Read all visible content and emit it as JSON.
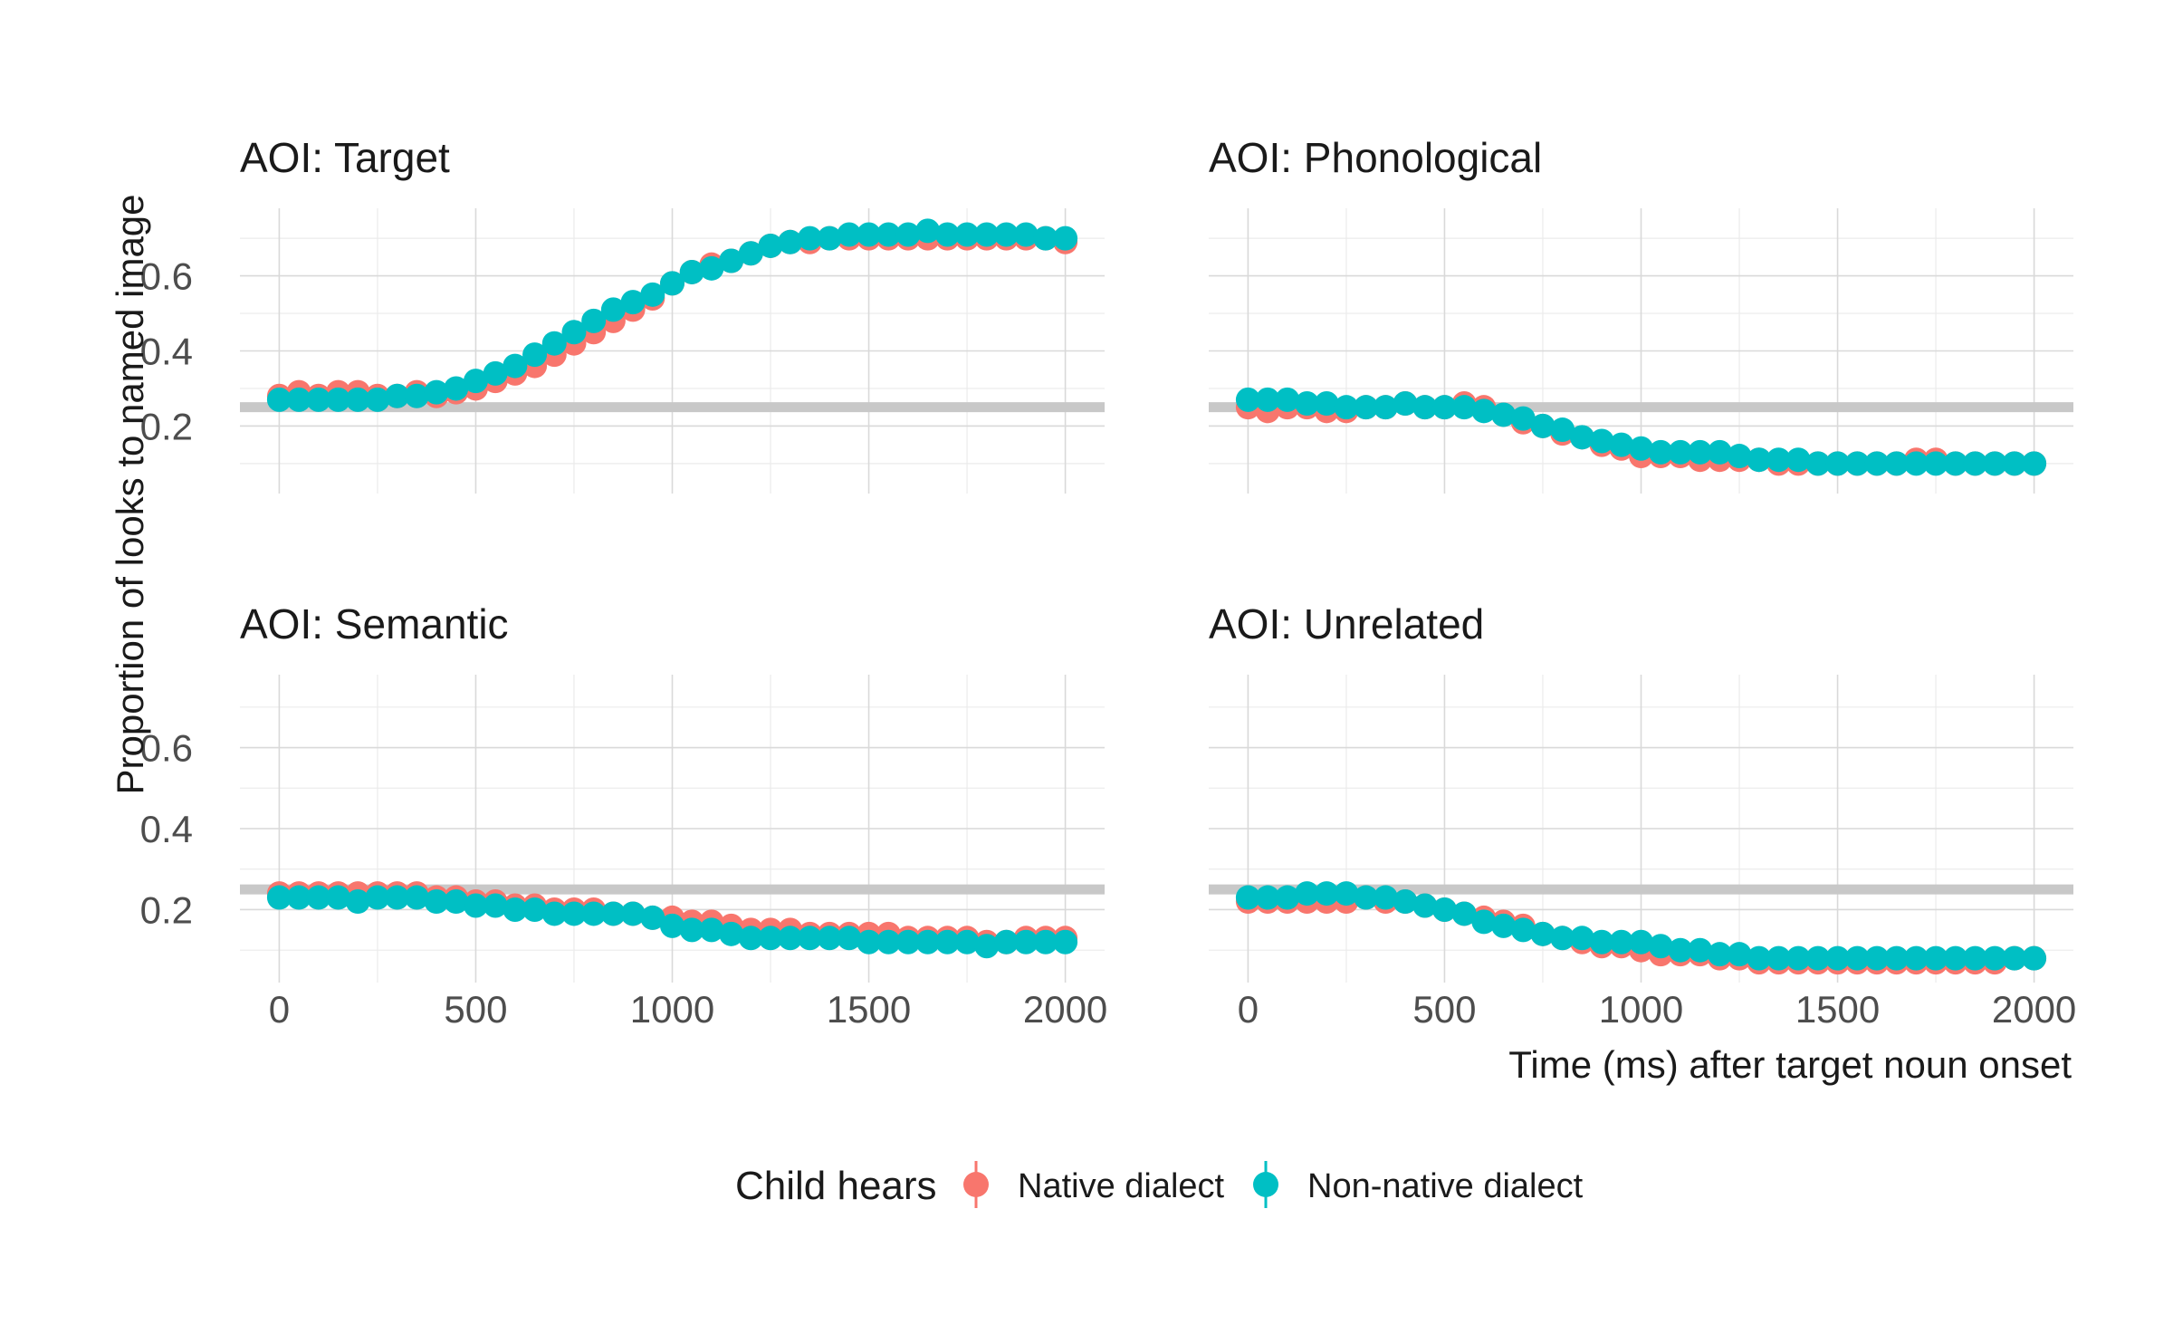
{
  "chart_data": {
    "type": "scatter",
    "title": "",
    "xlabel": "Time (ms) after target noun onset",
    "ylabel": "Proportion of looks to named image",
    "xlim": [
      -100,
      2100
    ],
    "ylim": [
      0.02,
      0.78
    ],
    "x_ticks": [
      0,
      500,
      1000,
      1500,
      2000
    ],
    "x_tick_labels": [
      "0",
      "500",
      "1000",
      "1500",
      "2000"
    ],
    "y_ticks": [
      0.2,
      0.4,
      0.6
    ],
    "y_tick_labels": [
      "0.2",
      "0.4",
      "0.6"
    ],
    "reference_line_y": 0.25,
    "grid": true,
    "legend_position": "bottom",
    "legend_title": "Child hears",
    "colors": {
      "Native dialect": "#f8766d",
      "Non-native dialect": "#00bfc4"
    },
    "x": [
      0,
      50,
      100,
      150,
      200,
      250,
      300,
      350,
      400,
      450,
      500,
      550,
      600,
      650,
      700,
      750,
      800,
      850,
      900,
      950,
      1000,
      1050,
      1100,
      1150,
      1200,
      1250,
      1300,
      1350,
      1400,
      1450,
      1500,
      1550,
      1600,
      1650,
      1700,
      1750,
      1800,
      1850,
      1900,
      1950,
      2000
    ],
    "panels": [
      {
        "title": "AOI: Target",
        "series": [
          {
            "name": "Native dialect",
            "values": [
              0.28,
              0.29,
              0.28,
              0.29,
              0.29,
              0.28,
              0.28,
              0.29,
              0.28,
              0.29,
              0.3,
              0.32,
              0.34,
              0.36,
              0.39,
              0.42,
              0.45,
              0.48,
              0.51,
              0.54,
              0.58,
              0.61,
              0.63,
              0.64,
              0.66,
              0.68,
              0.69,
              0.69,
              0.7,
              0.7,
              0.7,
              0.7,
              0.7,
              0.7,
              0.7,
              0.7,
              0.7,
              0.7,
              0.7,
              0.7,
              0.69
            ]
          },
          {
            "name": "Non-native dialect",
            "values": [
              0.27,
              0.27,
              0.27,
              0.27,
              0.27,
              0.27,
              0.28,
              0.28,
              0.29,
              0.3,
              0.32,
              0.34,
              0.36,
              0.39,
              0.42,
              0.45,
              0.48,
              0.51,
              0.53,
              0.55,
              0.58,
              0.61,
              0.62,
              0.64,
              0.66,
              0.68,
              0.69,
              0.7,
              0.7,
              0.71,
              0.71,
              0.71,
              0.71,
              0.72,
              0.71,
              0.71,
              0.71,
              0.71,
              0.71,
              0.7,
              0.7
            ]
          }
        ]
      },
      {
        "title": "AOI: Phonological",
        "series": [
          {
            "name": "Native dialect",
            "values": [
              0.25,
              0.24,
              0.25,
              0.25,
              0.24,
              0.24,
              0.25,
              0.25,
              0.26,
              0.25,
              0.25,
              0.26,
              0.25,
              0.23,
              0.21,
              0.2,
              0.18,
              0.17,
              0.15,
              0.14,
              0.12,
              0.12,
              0.12,
              0.11,
              0.11,
              0.11,
              0.11,
              0.1,
              0.1,
              0.1,
              0.1,
              0.1,
              0.1,
              0.1,
              0.11,
              0.11,
              0.1,
              0.1,
              0.1,
              0.1,
              0.1
            ]
          },
          {
            "name": "Non-native dialect",
            "values": [
              0.27,
              0.27,
              0.27,
              0.26,
              0.26,
              0.25,
              0.25,
              0.25,
              0.26,
              0.25,
              0.25,
              0.25,
              0.24,
              0.23,
              0.22,
              0.2,
              0.19,
              0.17,
              0.16,
              0.15,
              0.14,
              0.13,
              0.13,
              0.13,
              0.13,
              0.12,
              0.11,
              0.11,
              0.11,
              0.1,
              0.1,
              0.1,
              0.1,
              0.1,
              0.1,
              0.1,
              0.1,
              0.1,
              0.1,
              0.1,
              0.1
            ]
          }
        ]
      },
      {
        "title": "AOI: Semantic",
        "series": [
          {
            "name": "Native dialect",
            "values": [
              0.24,
              0.24,
              0.24,
              0.24,
              0.24,
              0.24,
              0.24,
              0.24,
              0.23,
              0.23,
              0.22,
              0.22,
              0.21,
              0.21,
              0.2,
              0.2,
              0.2,
              0.19,
              0.19,
              0.18,
              0.18,
              0.17,
              0.17,
              0.16,
              0.15,
              0.15,
              0.15,
              0.14,
              0.14,
              0.14,
              0.14,
              0.14,
              0.13,
              0.13,
              0.13,
              0.13,
              0.12,
              0.12,
              0.13,
              0.13,
              0.13
            ]
          },
          {
            "name": "Non-native dialect",
            "values": [
              0.23,
              0.23,
              0.23,
              0.23,
              0.22,
              0.23,
              0.23,
              0.23,
              0.22,
              0.22,
              0.21,
              0.21,
              0.2,
              0.2,
              0.19,
              0.19,
              0.19,
              0.19,
              0.19,
              0.18,
              0.16,
              0.15,
              0.15,
              0.14,
              0.13,
              0.13,
              0.13,
              0.13,
              0.13,
              0.13,
              0.12,
              0.12,
              0.12,
              0.12,
              0.12,
              0.12,
              0.11,
              0.12,
              0.12,
              0.12,
              0.12
            ]
          }
        ]
      },
      {
        "title": "AOI: Unrelated",
        "series": [
          {
            "name": "Native dialect",
            "values": [
              0.22,
              0.22,
              0.22,
              0.22,
              0.22,
              0.22,
              0.23,
              0.22,
              0.22,
              0.21,
              0.2,
              0.19,
              0.18,
              0.17,
              0.16,
              0.14,
              0.13,
              0.12,
              0.11,
              0.11,
              0.1,
              0.09,
              0.09,
              0.09,
              0.08,
              0.08,
              0.07,
              0.07,
              0.07,
              0.07,
              0.07,
              0.07,
              0.07,
              0.07,
              0.07,
              0.07,
              0.07,
              0.07,
              0.07,
              0.08,
              0.08
            ]
          },
          {
            "name": "Non-native dialect",
            "values": [
              0.23,
              0.23,
              0.23,
              0.24,
              0.24,
              0.24,
              0.23,
              0.23,
              0.22,
              0.21,
              0.2,
              0.19,
              0.17,
              0.16,
              0.15,
              0.14,
              0.13,
              0.13,
              0.12,
              0.12,
              0.12,
              0.11,
              0.1,
              0.1,
              0.09,
              0.09,
              0.08,
              0.08,
              0.08,
              0.08,
              0.08,
              0.08,
              0.08,
              0.08,
              0.08,
              0.08,
              0.08,
              0.08,
              0.08,
              0.08,
              0.08
            ]
          }
        ]
      }
    ]
  }
}
